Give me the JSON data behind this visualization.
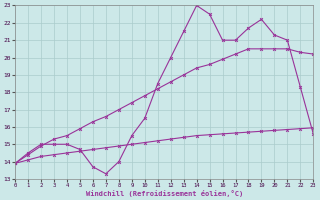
{
  "xlabel": "Windchill (Refroidissement éolien,°C)",
  "xlim": [
    0,
    23
  ],
  "ylim": [
    13,
    23
  ],
  "xticks": [
    0,
    1,
    2,
    3,
    4,
    5,
    6,
    7,
    8,
    9,
    10,
    11,
    12,
    13,
    14,
    15,
    16,
    17,
    18,
    19,
    20,
    21,
    22,
    23
  ],
  "yticks": [
    13,
    14,
    15,
    16,
    17,
    18,
    19,
    20,
    21,
    22,
    23
  ],
  "bg_color": "#cce8e8",
  "line_color": "#993399",
  "grid_color": "#aacccc",
  "line1_x": [
    0,
    1,
    2,
    3,
    4,
    5,
    6,
    7,
    8,
    9,
    10,
    11,
    12,
    13,
    14,
    15,
    16,
    17,
    18,
    19,
    20,
    21,
    22,
    23
  ],
  "line1_y": [
    13.9,
    14.1,
    14.3,
    14.4,
    14.5,
    14.6,
    14.7,
    14.8,
    14.9,
    15.0,
    15.1,
    15.2,
    15.3,
    15.4,
    15.5,
    15.55,
    15.6,
    15.65,
    15.7,
    15.75,
    15.8,
    15.85,
    15.9,
    15.95
  ],
  "line2_x": [
    0,
    1,
    2,
    3,
    4,
    5,
    6,
    7,
    8,
    9,
    10,
    11,
    12,
    13,
    14,
    15,
    16,
    17,
    18,
    19,
    20,
    21,
    22,
    23
  ],
  "line2_y": [
    13.9,
    14.4,
    14.9,
    15.3,
    15.5,
    15.9,
    16.3,
    16.6,
    17.0,
    17.4,
    17.8,
    18.2,
    18.6,
    19.0,
    19.4,
    19.6,
    19.9,
    20.2,
    20.5,
    20.5,
    20.5,
    20.5,
    20.3,
    20.2
  ],
  "line3_x": [
    0,
    1,
    2,
    3,
    4,
    5,
    6,
    7,
    8,
    9,
    10,
    11,
    12,
    13,
    14,
    15,
    16,
    17,
    18,
    19,
    20,
    21,
    22,
    23
  ],
  "line3_y": [
    13.9,
    14.5,
    15.0,
    15.0,
    15.0,
    14.7,
    13.7,
    13.3,
    14.0,
    15.5,
    16.5,
    18.5,
    20.0,
    21.5,
    23.0,
    22.5,
    21.0,
    21.0,
    21.7,
    22.2,
    21.3,
    21.0,
    18.3,
    15.6
  ]
}
